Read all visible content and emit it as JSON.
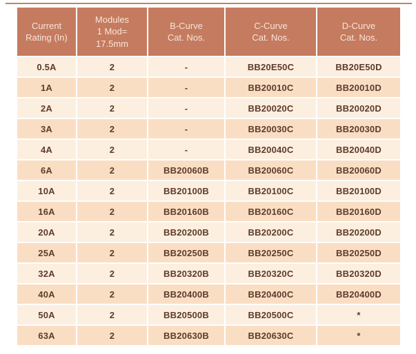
{
  "page": {
    "background": "#ffffff",
    "top_rule_color": "#c97f63"
  },
  "table": {
    "columns": [
      {
        "label": "Current\nRating (In)"
      },
      {
        "label": "Modules\n1 Mod=\n17.5mm"
      },
      {
        "label": "B-Curve\nCat. Nos."
      },
      {
        "label": "C-Curve\nCat. Nos."
      },
      {
        "label": "D-Curve\nCat. Nos."
      }
    ],
    "rows": [
      [
        "0.5A",
        "2",
        "-",
        "BB20E50C",
        "BB20E50D"
      ],
      [
        "1A",
        "2",
        "-",
        "BB20010C",
        "BB20010D"
      ],
      [
        "2A",
        "2",
        "-",
        "BB20020C",
        "BB20020D"
      ],
      [
        "3A",
        "2",
        "-",
        "BB20030C",
        "BB20030D"
      ],
      [
        "4A",
        "2",
        "-",
        "BB20040C",
        "BB20040D"
      ],
      [
        "6A",
        "2",
        "BB20060B",
        "BB20060C",
        "BB20060D"
      ],
      [
        "10A",
        "2",
        "BB20100B",
        "BB20100C",
        "BB20100D"
      ],
      [
        "16A",
        "2",
        "BB20160B",
        "BB20160C",
        "BB20160D"
      ],
      [
        "20A",
        "2",
        "BB20200B",
        "BB20200C",
        "BB20200D"
      ],
      [
        "25A",
        "2",
        "BB20250B",
        "BB20250C",
        "BB20250D"
      ],
      [
        "32A",
        "2",
        "BB20320B",
        "BB20320C",
        "BB20320D"
      ],
      [
        "40A",
        "2",
        "BB20400B",
        "BB20400C",
        "BB20400D"
      ],
      [
        "50A",
        "2",
        "BB20500B",
        "BB20500C",
        "*"
      ],
      [
        "63A",
        "2",
        "BB20630B",
        "BB20630C",
        "*"
      ]
    ],
    "colors": {
      "header_bg": "#c57b5f",
      "header_text": "#f7e5da",
      "row_light": "#fcefdf",
      "row_dark": "#fadec4",
      "cell_text": "#5e3b2b"
    }
  }
}
